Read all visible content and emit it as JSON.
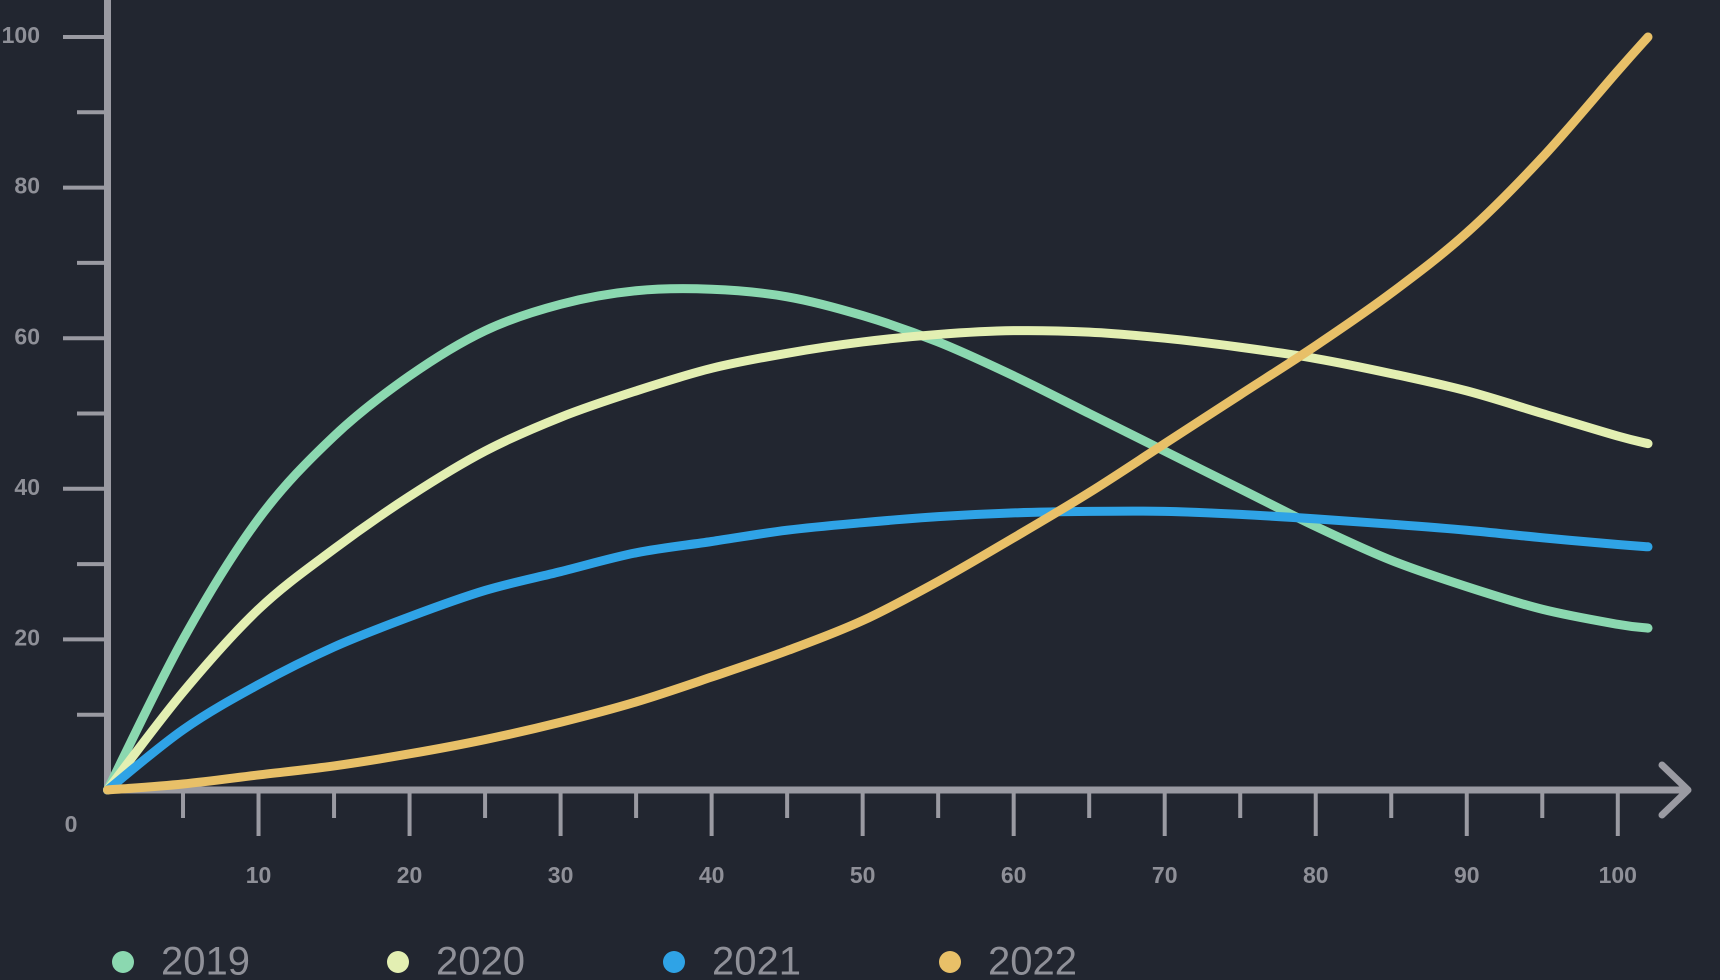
{
  "chart_data": {
    "type": "line",
    "x": [
      0,
      5,
      10,
      15,
      20,
      25,
      30,
      35,
      40,
      45,
      50,
      55,
      60,
      65,
      70,
      75,
      80,
      85,
      90,
      95,
      100,
      102
    ],
    "series": [
      {
        "name": "2019",
        "color": "#8bd8b0",
        "values": [
          0,
          20,
          36,
          47,
          55,
          61,
          64.5,
          66.3,
          66.5,
          65.5,
          63,
          59.5,
          55,
          50,
          45,
          40,
          35,
          30.5,
          27,
          24,
          22,
          21.5
        ]
      },
      {
        "name": "2020",
        "color": "#e3efb2",
        "values": [
          0,
          13,
          24,
          32,
          39,
          45,
          49.5,
          53,
          56,
          58,
          59.5,
          60.5,
          61,
          60.8,
          60,
          58.8,
          57.3,
          55.3,
          53,
          50,
          47,
          46
        ]
      },
      {
        "name": "2021",
        "color": "#2fa3e6",
        "values": [
          0,
          8,
          14,
          19,
          23,
          26.5,
          29,
          31.5,
          33,
          34.5,
          35.5,
          36.3,
          36.8,
          37,
          37,
          36.6,
          36,
          35.3,
          34.5,
          33.5,
          32.6,
          32.3
        ]
      },
      {
        "name": "2022",
        "color": "#e8c068",
        "values": [
          0,
          0.8,
          2,
          3.2,
          4.8,
          6.7,
          9,
          11.7,
          15,
          18.5,
          22.5,
          27.7,
          33.5,
          39.5,
          46,
          52.5,
          59,
          66,
          74,
          84,
          95.5,
          100
        ]
      }
    ],
    "xlim": [
      0,
      102
    ],
    "ylim": [
      0,
      100
    ],
    "xticks": [
      10,
      20,
      30,
      40,
      50,
      60,
      70,
      80,
      90,
      100
    ],
    "yticks": [
      20,
      40,
      60,
      80,
      100
    ],
    "x_minor_ticks": [
      5,
      15,
      25,
      35,
      45,
      55,
      65,
      75,
      85,
      95
    ],
    "y_minor_ticks": [
      10,
      30,
      50,
      70,
      90
    ],
    "origin_label": 0,
    "grid": false
  }
}
